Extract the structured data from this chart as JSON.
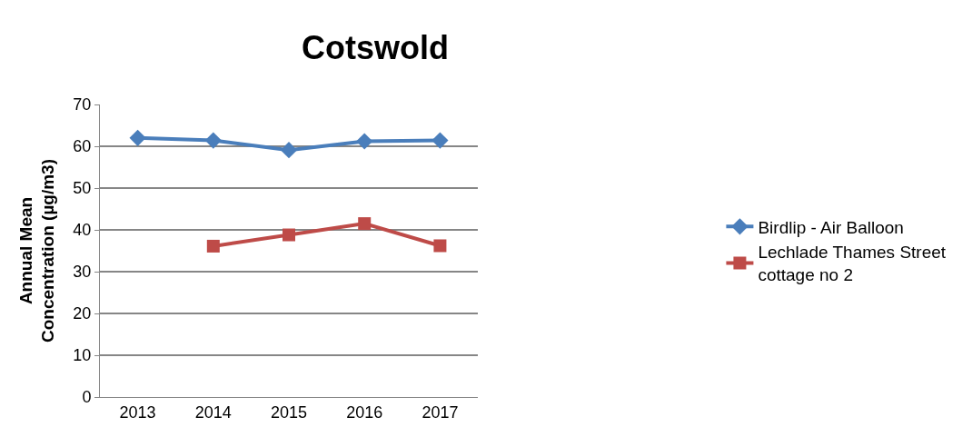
{
  "chart_data": {
    "type": "line",
    "title": "Cotswold",
    "ylabel": "Annual Mean Concentration (µg/m3)",
    "categories": [
      "2013",
      "2014",
      "2015",
      "2016",
      "2017"
    ],
    "series": [
      {
        "name": "Birdlip - Air Balloon",
        "color": "#4a7ebb",
        "values": [
          62.0,
          61.4,
          59.1,
          61.2,
          61.4
        ],
        "marker": "diamond"
      },
      {
        "name": "Lechlade Thames Street cottage no 2",
        "color": "#be4b48",
        "values": [
          null,
          36.1,
          38.8,
          41.5,
          36.2
        ],
        "marker": "square"
      }
    ],
    "ylim": [
      0,
      70
    ],
    "yticks": [
      0,
      10,
      20,
      30,
      40,
      50,
      60,
      70
    ],
    "grid": "y",
    "legend": "right"
  }
}
